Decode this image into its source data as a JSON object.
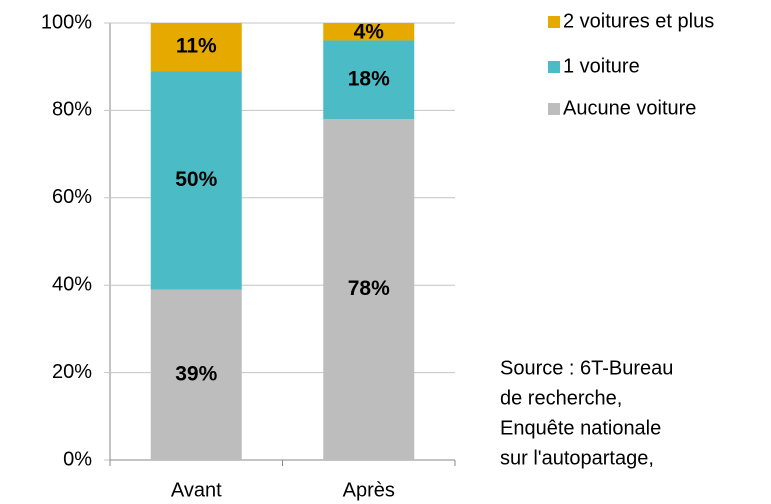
{
  "chart_data": {
    "type": "stacked_bar",
    "categories": [
      "Avant",
      "Après"
    ],
    "series": [
      {
        "name": "Aucune voiture",
        "color": "#bdbdbd",
        "values": [
          39,
          78
        ],
        "value_labels": [
          "39%",
          "78%"
        ]
      },
      {
        "name": "1 voiture",
        "color": "#4bbcc6",
        "values": [
          50,
          18
        ],
        "value_labels": [
          "50%",
          "18%"
        ]
      },
      {
        "name": "2 voitures et plus",
        "color": "#e6a900",
        "values": [
          11,
          4
        ],
        "value_labels": [
          "11%",
          "4%"
        ]
      }
    ],
    "ylim": [
      0,
      100
    ],
    "yticks": [
      {
        "value": 0,
        "label": "0%"
      },
      {
        "value": 20,
        "label": "20%"
      },
      {
        "value": 40,
        "label": "40%"
      },
      {
        "value": 60,
        "label": "60%"
      },
      {
        "value": 80,
        "label": "80%"
      },
      {
        "value": 100,
        "label": "100%"
      }
    ],
    "grid": true,
    "legend": "right",
    "source": [
      "Source : 6T-Bureau",
      "de recherche,",
      "Enquête nationale",
      "sur l'autopartage,"
    ]
  }
}
